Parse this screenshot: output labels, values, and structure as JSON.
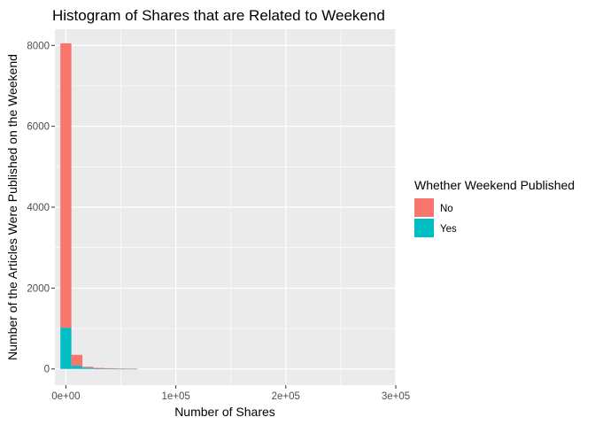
{
  "chart_data": {
    "type": "bar",
    "title": "Histogram of Shares that are Related to Weekend",
    "xlabel": "Number of Shares",
    "ylabel": "Number of the Articles Were Published on the Weekend",
    "xlim": [
      -10000,
      300000
    ],
    "ylim": [
      -400,
      8400
    ],
    "bin_width": 10000,
    "x_ticks": [
      0,
      100000,
      200000,
      300000
    ],
    "x_tick_labels": [
      "0e+00",
      "1e+05",
      "2e+05",
      "3e+05"
    ],
    "y_ticks": [
      0,
      2000,
      4000,
      6000,
      8000
    ],
    "y_tick_labels": [
      "0",
      "2000",
      "4000",
      "6000",
      "8000"
    ],
    "bin_centers": [
      0,
      10000,
      20000,
      30000,
      40000,
      50000,
      60000
    ],
    "series": [
      {
        "name": "Yes",
        "color": "#00BFC4",
        "values": [
          1020,
          80,
          30,
          5,
          3,
          2,
          1
        ]
      },
      {
        "name": "No",
        "color": "#F8766D",
        "values": [
          7030,
          270,
          25,
          20,
          15,
          10,
          8
        ]
      }
    ],
    "legend": {
      "title": "Whether Weekend Published",
      "position": "right",
      "entries": [
        {
          "label": "No",
          "color": "#F8766D"
        },
        {
          "label": "Yes",
          "color": "#00BFC4"
        }
      ]
    },
    "grid": true,
    "panel_background": "#EBEBEB",
    "grid_color": "#FFFFFF"
  }
}
